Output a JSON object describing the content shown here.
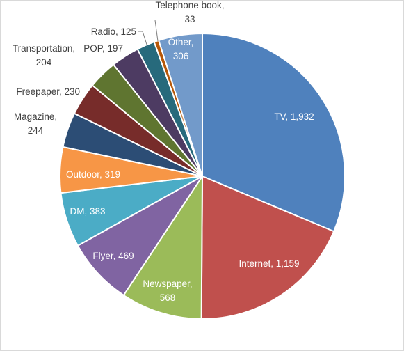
{
  "chart_data": {
    "type": "pie",
    "title": "",
    "start_angle_deg": 0,
    "direction": "clockwise",
    "legend": "none",
    "slices": [
      {
        "name": "TV",
        "value": 1932,
        "color": "#4F81BD",
        "label_lines": [
          "TV, 1,932"
        ],
        "label_color": "#ffffff",
        "label_position": "inside"
      },
      {
        "name": "Internet",
        "value": 1159,
        "color": "#C0504D",
        "label_lines": [
          "Internet, 1,159"
        ],
        "label_color": "#ffffff",
        "label_position": "inside"
      },
      {
        "name": "Newspaper",
        "value": 568,
        "color": "#9BBB59",
        "label_lines": [
          "Newspaper,",
          "568"
        ],
        "label_color": "#ffffff",
        "label_position": "inside"
      },
      {
        "name": "Flyer",
        "value": 469,
        "color": "#8064A2",
        "label_lines": [
          "Flyer, 469"
        ],
        "label_color": "#ffffff",
        "label_position": "inside"
      },
      {
        "name": "DM",
        "value": 383,
        "color": "#4BACC6",
        "label_lines": [
          "DM, 383"
        ],
        "label_color": "#ffffff",
        "label_position": "inside"
      },
      {
        "name": "Outdoor",
        "value": 319,
        "color": "#F79646",
        "label_lines": [
          "Outdoor, 319"
        ],
        "label_color": "#ffffff",
        "label_position": "inside"
      },
      {
        "name": "Magazine",
        "value": 244,
        "color": "#2C4D75",
        "label_lines": [
          "Magazine,",
          "244"
        ],
        "label_color": "#404040",
        "label_position": "outside"
      },
      {
        "name": "Freepaper",
        "value": 230,
        "color": "#772C2A",
        "label_lines": [
          "Freepaper, 230"
        ],
        "label_color": "#404040",
        "label_position": "outside"
      },
      {
        "name": "Transportation",
        "value": 204,
        "color": "#5F7530",
        "label_lines": [
          "Transportation,",
          "204"
        ],
        "label_color": "#404040",
        "label_position": "outside"
      },
      {
        "name": "POP",
        "value": 197,
        "color": "#4D3B62",
        "label_lines": [
          "POP, 197"
        ],
        "label_color": "#404040",
        "label_position": "outside"
      },
      {
        "name": "Radio",
        "value": 125,
        "color": "#276A7C",
        "label_lines": [
          "Radio, 125"
        ],
        "label_color": "#404040",
        "label_position": "outside"
      },
      {
        "name": "Telephone book",
        "value": 33,
        "color": "#B65708",
        "label_lines": [
          "Telephone book,",
          "33"
        ],
        "label_color": "#404040",
        "label_position": "outside"
      },
      {
        "name": "Other",
        "value": 306,
        "color": "#729ACA",
        "label_lines": [
          "Other,",
          "306"
        ],
        "label_color": "#ffffff",
        "label_position": "inside"
      }
    ]
  }
}
